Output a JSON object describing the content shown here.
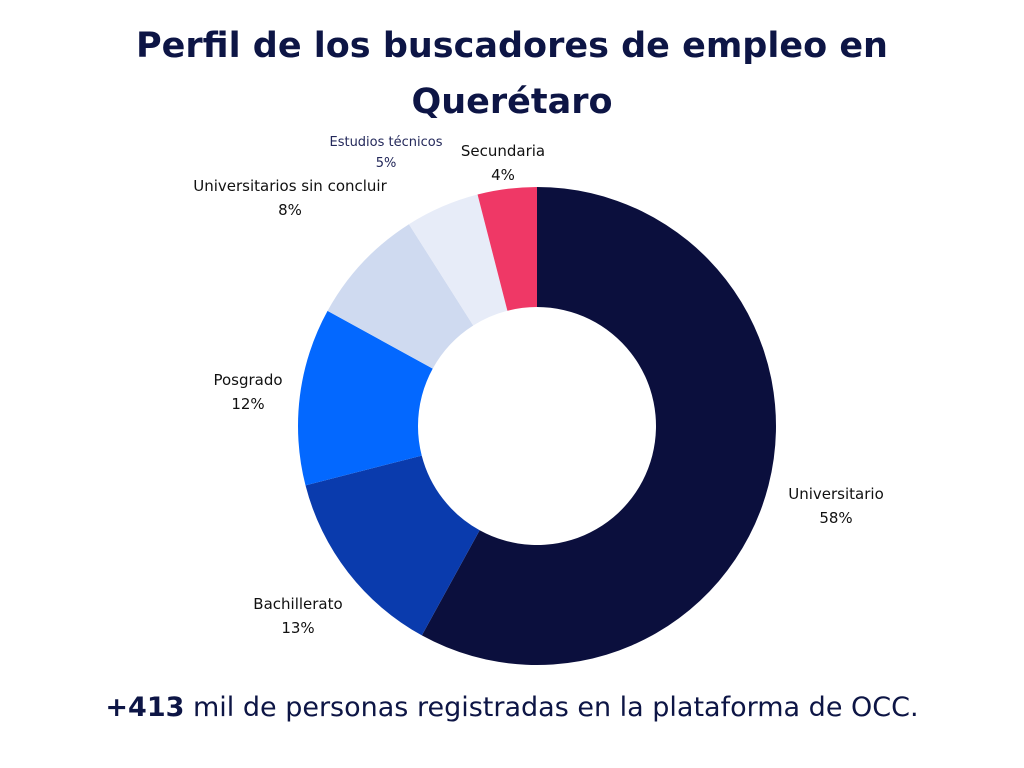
{
  "title": "Perfil de los buscadores de empleo en Querétaro",
  "footer": {
    "highlight": "+413",
    "text": " mil de personas registradas en la plataforma de OCC."
  },
  "chart_data": {
    "type": "pie",
    "variant": "donut",
    "slices": [
      {
        "label": "Universitario",
        "value": 58,
        "display": "58%",
        "color": "#0b0f3d"
      },
      {
        "label": "Bachillerato",
        "value": 13,
        "display": "13%",
        "color": "#0a3bad"
      },
      {
        "label": "Posgrado",
        "value": 12,
        "display": "12%",
        "color": "#0368ff"
      },
      {
        "label": "Universitarios sin concluir",
        "value": 8,
        "display": "8%",
        "color": "#cfdaf0"
      },
      {
        "label": "Estudios técnicos",
        "value": 5,
        "display": "5%",
        "color": "#e7ecf8"
      },
      {
        "label": "Secundaria",
        "value": 4,
        "display": "4%",
        "color": "#ef3866"
      }
    ]
  }
}
